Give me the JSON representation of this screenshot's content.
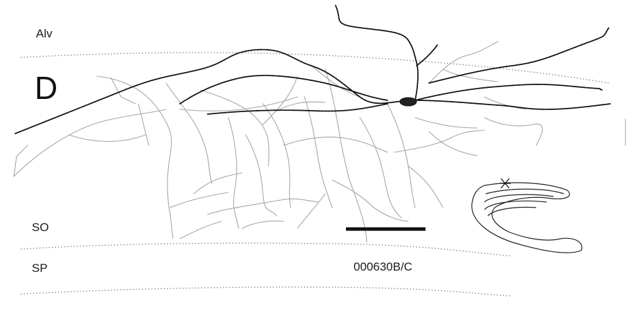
{
  "panel_letter": "D",
  "layers": {
    "alv": "Alv",
    "so": "SO",
    "sp": "SP"
  },
  "cell_id": "000630B/C",
  "colors": {
    "background": "#ffffff",
    "dendrite": "#111111",
    "axon": "#a8a8a8",
    "boundary": "#888888",
    "text": "#1a1a1a"
  },
  "icons": {
    "inset": "hippocampus-outline-icon",
    "location_marker": "star-marker-icon"
  }
}
